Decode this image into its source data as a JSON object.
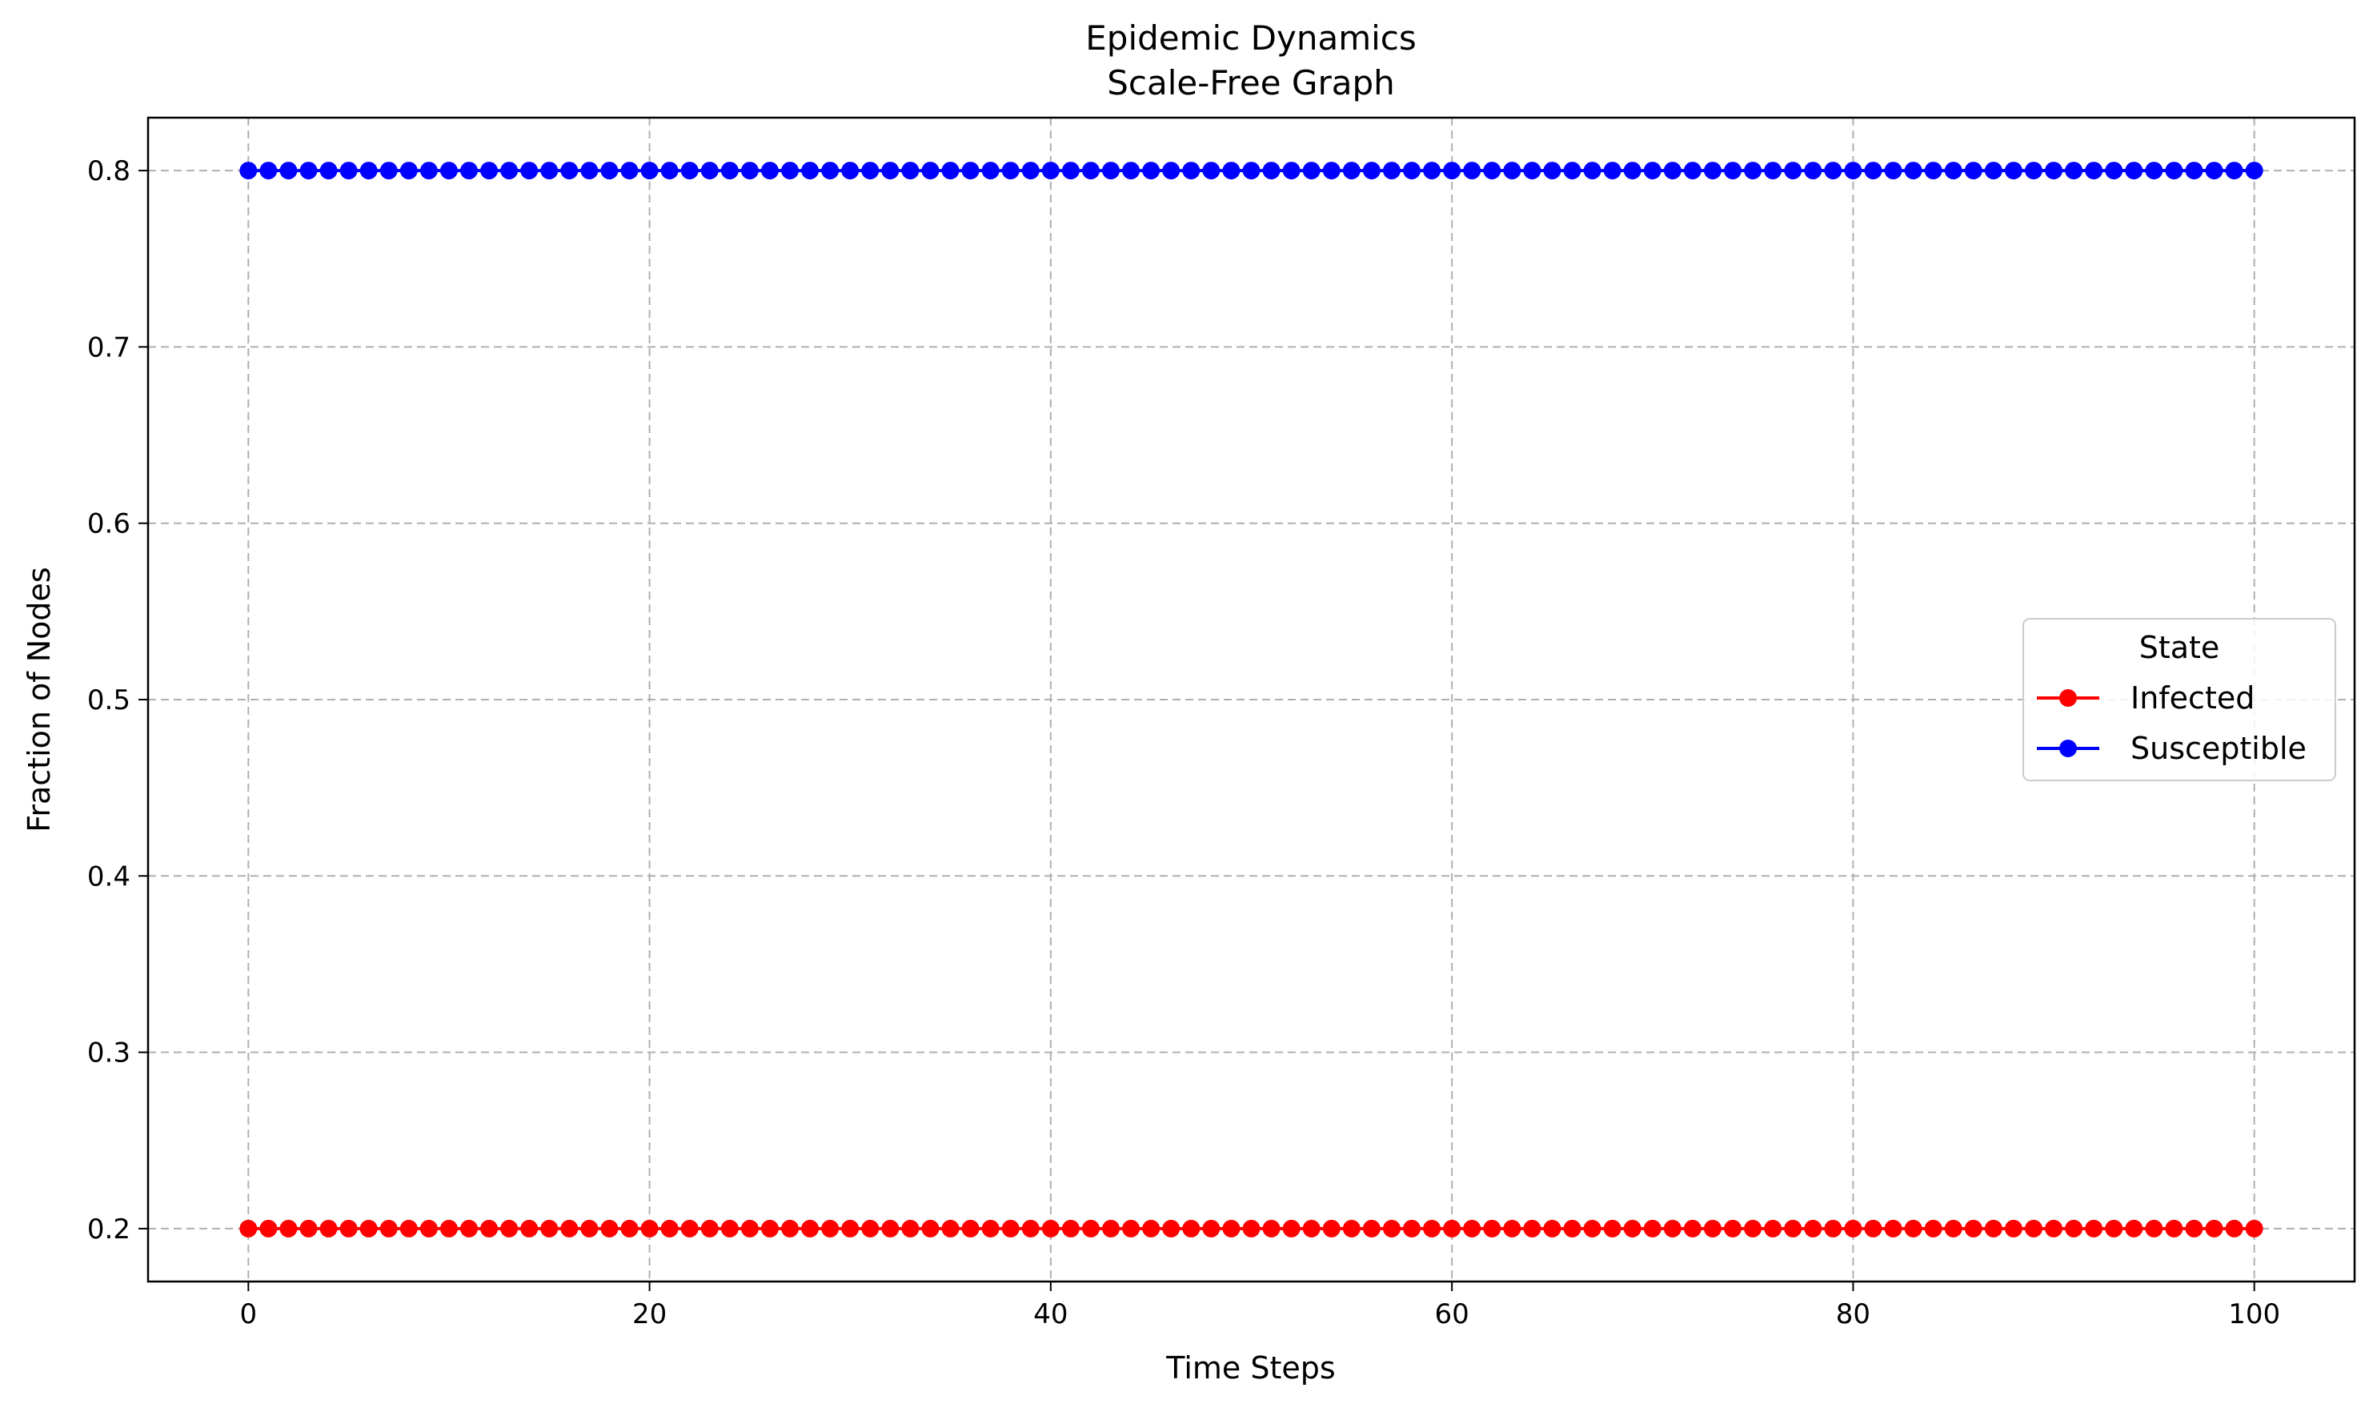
{
  "chart_data": {
    "type": "line",
    "title": "Epidemic Dynamics",
    "subtitle": "Scale-Free Graph",
    "xlabel": "Time Steps",
    "ylabel": "Fraction of Nodes",
    "xlim": [
      -5,
      105
    ],
    "ylim": [
      0.17,
      0.83
    ],
    "xticks": [
      0,
      20,
      40,
      60,
      80,
      100
    ],
    "yticks": [
      0.2,
      0.3,
      0.4,
      0.5,
      0.6,
      0.7,
      0.8
    ],
    "xtick_labels": [
      "0",
      "20",
      "40",
      "60",
      "80",
      "100"
    ],
    "ytick_labels": [
      "0.2",
      "0.3",
      "0.4",
      "0.5",
      "0.6",
      "0.7",
      "0.8"
    ],
    "grid": true,
    "legend": {
      "title": "State",
      "placement": "center-right"
    },
    "x_range": {
      "start": 0,
      "end": 100,
      "step": 1
    },
    "series": [
      {
        "name": "Infected",
        "color": "#ff0000",
        "marker": "circle",
        "constant_value": 0.2
      },
      {
        "name": "Susceptible",
        "color": "#0000ff",
        "marker": "circle",
        "constant_value": 0.8
      }
    ]
  }
}
